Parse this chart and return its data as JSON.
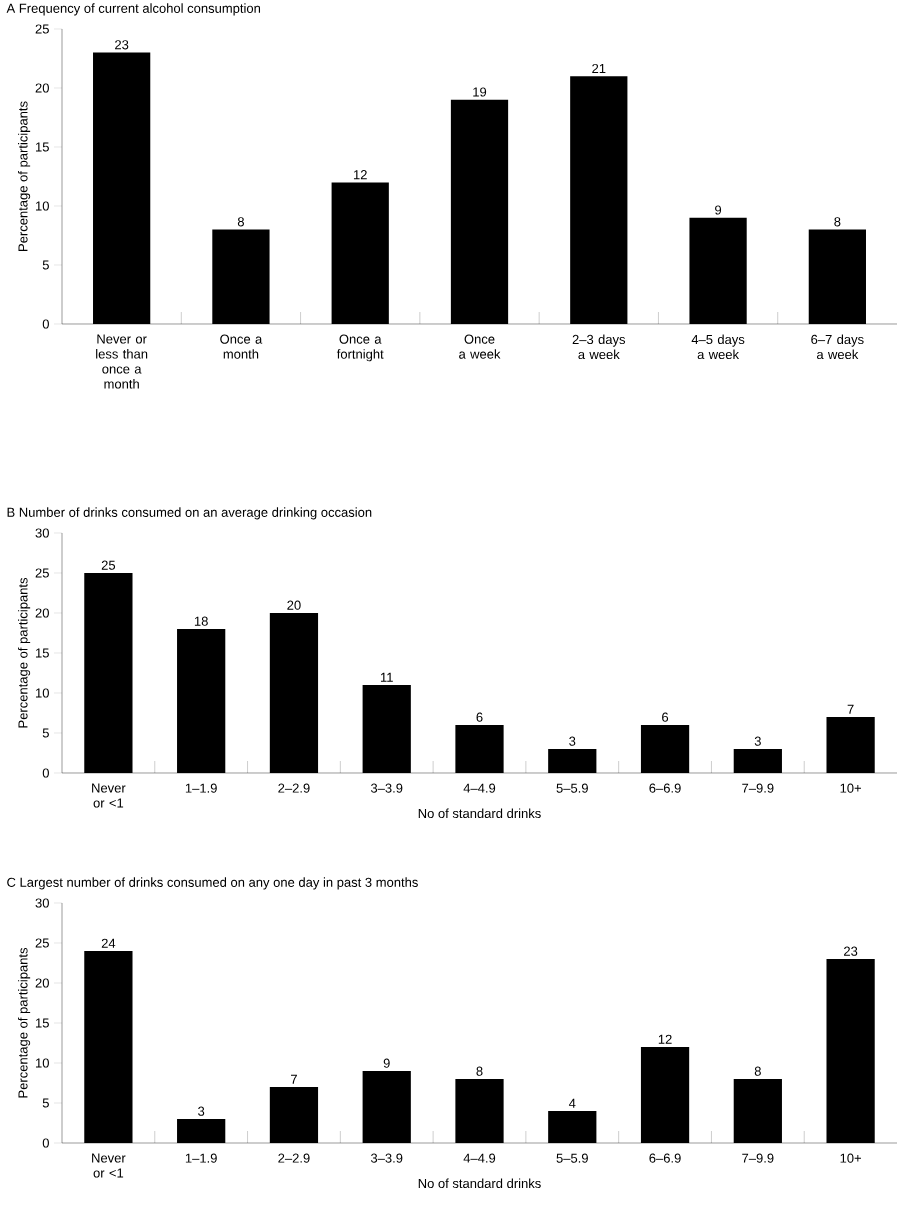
{
  "chart_data": [
    {
      "type": "bar",
      "title": "A  Frequency of current alcohol consumption",
      "ylabel": "Percentage of participants",
      "categories": [
        "Never or less than once a month",
        "Once a month",
        "Once a fortnight",
        "Once a week",
        "2–3 days a week",
        "4–5 days a week",
        "6–7 days a week"
      ],
      "values": [
        23,
        8,
        12,
        19,
        21,
        9,
        8
      ],
      "color": "#000000",
      "ylim": [
        0,
        25
      ],
      "yticks": [
        0,
        5,
        10,
        15,
        20,
        25
      ],
      "data_labels": true
    },
    {
      "type": "bar",
      "title": "B  Number of drinks consumed on an average drinking occasion",
      "ylabel": "Percentage of participants",
      "xlabel": "No of standard drinks",
      "categories": [
        "Never or <1",
        "1–1.9",
        "2–2.9",
        "3–3.9",
        "4–4.9",
        "5–5.9",
        "6–6.9",
        "7–9.9",
        "10+"
      ],
      "values": [
        25,
        18,
        20,
        11,
        6,
        3,
        6,
        3,
        7
      ],
      "color": "#000000",
      "ylim": [
        0,
        30
      ],
      "yticks": [
        0,
        5,
        10,
        15,
        20,
        25,
        30
      ],
      "data_labels": true
    },
    {
      "type": "bar",
      "title": "C  Largest number of drinks consumed on any one day in past 3 months",
      "ylabel": "Percentage of participants",
      "xlabel": "No of standard drinks",
      "categories": [
        "Never or <1",
        "1–1.9",
        "2–2.9",
        "3–3.9",
        "4–4.9",
        "5–5.9",
        "6–6.9",
        "7–9.9",
        "10+"
      ],
      "values": [
        24,
        3,
        7,
        9,
        8,
        4,
        12,
        8,
        23
      ],
      "color": "#000000",
      "ylim": [
        0,
        30
      ],
      "yticks": [
        0,
        5,
        10,
        15,
        20,
        25,
        30
      ],
      "data_labels": true
    }
  ]
}
